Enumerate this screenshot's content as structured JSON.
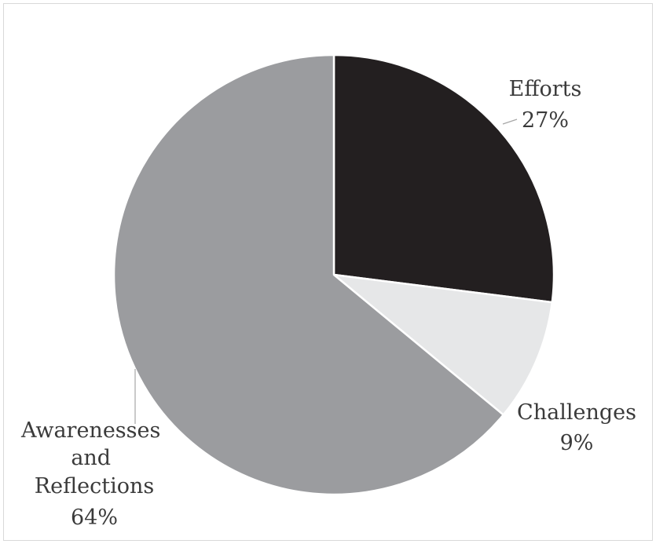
{
  "chart_data": {
    "type": "pie",
    "title": "",
    "slices": [
      {
        "label": "Efforts",
        "value": 27,
        "percent_label": "27%",
        "color": "#231f20"
      },
      {
        "label": "Challenges",
        "value": 9,
        "percent_label": "9%",
        "color": "#e6e7e8"
      },
      {
        "label": "Awarenesses and Reflections",
        "value": 64,
        "percent_label": "64%",
        "color": "#9b9c9f"
      }
    ],
    "start_angle_deg": 0,
    "direction": "clockwise",
    "slice_border_color": "#ffffff",
    "leader_line_color": "#a6a6a6",
    "legend": "none"
  }
}
